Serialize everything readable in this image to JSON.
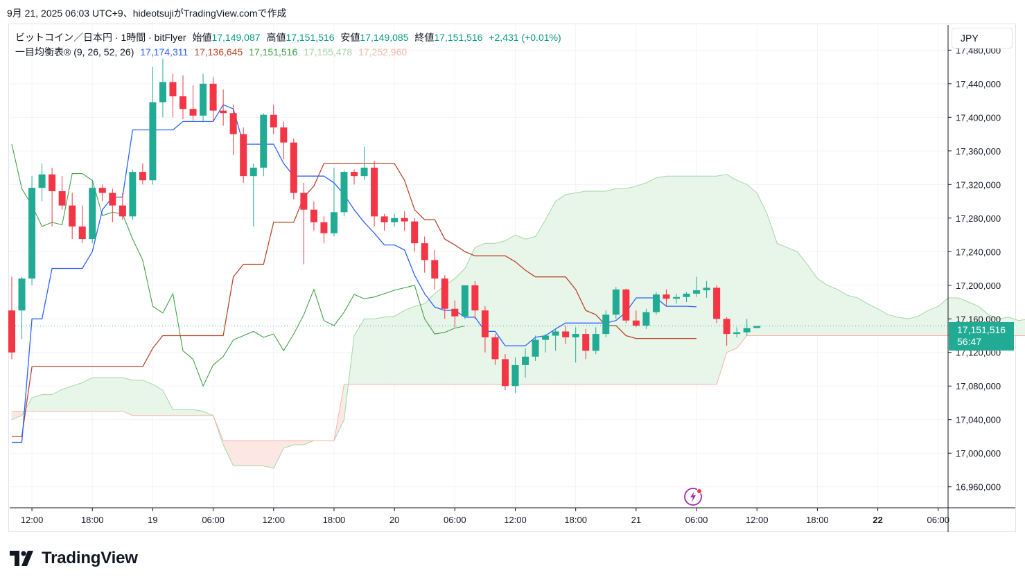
{
  "caption": "9月 21, 2025 06:03 UTC+9、hideotsujiがTradingView.comで作成",
  "legend": {
    "symbol": "ビットコイン／日本円 · 1時間 · bitFlyer",
    "open_label": "始値",
    "open": "17,149,087",
    "high_label": "高値",
    "high": "17,151,516",
    "low_label": "安値",
    "low": "17,149,085",
    "close_label": "終値",
    "close": "17,151,516",
    "change": "+2,431 (+0.01%)",
    "indicator": "一目均衡表® (9, 26, 52, 26)",
    "tenkan": "17,174,311",
    "kijun": "17,136,645",
    "chikou": "17,151,516",
    "span_a": "17,155,478",
    "span_b": "17,252,960"
  },
  "currency_button": "JPY",
  "price_tag": {
    "price": "17,151,516",
    "countdown": "56:47"
  },
  "brand": "TradingView",
  "colors": {
    "up": "#22ab94",
    "down": "#f23645",
    "tenkan": "#2962ff",
    "kijun": "#b7472a",
    "chikou": "#43a047",
    "span_a": "#a5d6a7",
    "span_b": "#f7b4a7",
    "cloud_bull": "#e8f5e9",
    "cloud_bear": "#fde7e4"
  },
  "icons": {
    "flash": "lightning-icon",
    "logo": "tradingview-logo-icon"
  },
  "chart_data": {
    "type": "candlestick",
    "x_start": "2025-09-18T11:00",
    "x_interval": "1h",
    "ylim": [
      16935000,
      17510000
    ],
    "y_ticks": [
      16960000,
      17000000,
      17040000,
      17080000,
      17120000,
      17160000,
      17200000,
      17240000,
      17280000,
      17320000,
      17360000,
      17400000,
      17440000,
      17480000
    ],
    "y_tick_labels": [
      "16,960,000",
      "17,000,000",
      "17,040,000",
      "17,080,000",
      "17,120,000",
      "17,160,000",
      "17,200,000",
      "17,240,000",
      "17,280,000",
      "17,320,000",
      "17,360,000",
      "17,400,000",
      "17,440,000",
      "17,480,000"
    ],
    "x_ticks": [
      {
        "i": 2,
        "label": "12:00"
      },
      {
        "i": 8,
        "label": "18:00"
      },
      {
        "i": 14,
        "label": "19"
      },
      {
        "i": 20,
        "label": "06:00"
      },
      {
        "i": 26,
        "label": "12:00"
      },
      {
        "i": 32,
        "label": "18:00"
      },
      {
        "i": 38,
        "label": "20"
      },
      {
        "i": 44,
        "label": "06:00"
      },
      {
        "i": 50,
        "label": "12:00"
      },
      {
        "i": 56,
        "label": "18:00"
      },
      {
        "i": 62,
        "label": "21"
      },
      {
        "i": 68,
        "label": "06:00"
      },
      {
        "i": 74,
        "label": "12:00"
      },
      {
        "i": 80,
        "label": "18:00"
      },
      {
        "i": 86,
        "label": "22",
        "bold": true
      },
      {
        "i": 92,
        "label": "06:00"
      }
    ],
    "ohlc": [
      [
        17170000,
        17210000,
        17112000,
        17120000
      ],
      [
        17170000,
        17210000,
        17136000,
        17208000
      ],
      [
        17208000,
        17330000,
        17200000,
        17316000
      ],
      [
        17316000,
        17345000,
        17300000,
        17332000
      ],
      [
        17332000,
        17340000,
        17270000,
        17312000
      ],
      [
        17312000,
        17330000,
        17290000,
        17295000
      ],
      [
        17295000,
        17310000,
        17255000,
        17270000
      ],
      [
        17270000,
        17295000,
        17250000,
        17255000
      ],
      [
        17255000,
        17325000,
        17250000,
        17316000
      ],
      [
        17316000,
        17320000,
        17300000,
        17310000
      ],
      [
        17310000,
        17315000,
        17275000,
        17295000
      ],
      [
        17295000,
        17310000,
        17278000,
        17282000
      ],
      [
        17282000,
        17338000,
        17278000,
        17335000
      ],
      [
        17335000,
        17345000,
        17320000,
        17325000
      ],
      [
        17325000,
        17460000,
        17320000,
        17418000
      ],
      [
        17418000,
        17470000,
        17400000,
        17442000
      ],
      [
        17442000,
        17452000,
        17400000,
        17425000
      ],
      [
        17425000,
        17450000,
        17398000,
        17410000
      ],
      [
        17410000,
        17438000,
        17396000,
        17402000
      ],
      [
        17402000,
        17452000,
        17394000,
        17440000
      ],
      [
        17440000,
        17448000,
        17395000,
        17408000
      ],
      [
        17408000,
        17433000,
        17390000,
        17405000
      ],
      [
        17405000,
        17415000,
        17355000,
        17380000
      ],
      [
        17380000,
        17388000,
        17322000,
        17330000
      ],
      [
        17330000,
        17345000,
        17270000,
        17340000
      ],
      [
        17340000,
        17405000,
        17330000,
        17403000
      ],
      [
        17403000,
        17415000,
        17380000,
        17388000
      ],
      [
        17388000,
        17395000,
        17350000,
        17370000
      ],
      [
        17370000,
        17375000,
        17302000,
        17310000
      ],
      [
        17310000,
        17322000,
        17225000,
        17290000
      ],
      [
        17290000,
        17300000,
        17265000,
        17275000
      ],
      [
        17275000,
        17282000,
        17250000,
        17262000
      ],
      [
        17262000,
        17340000,
        17258000,
        17287000
      ],
      [
        17287000,
        17337000,
        17282000,
        17335000
      ],
      [
        17335000,
        17338000,
        17320000,
        17330000
      ],
      [
        17330000,
        17365000,
        17325000,
        17340000
      ],
      [
        17340000,
        17348000,
        17270000,
        17282000
      ],
      [
        17282000,
        17285000,
        17265000,
        17275000
      ],
      [
        17275000,
        17285000,
        17270000,
        17280000
      ],
      [
        17280000,
        17288000,
        17265000,
        17276000
      ],
      [
        17276000,
        17280000,
        17240000,
        17250000
      ],
      [
        17250000,
        17258000,
        17215000,
        17230000
      ],
      [
        17230000,
        17242000,
        17195000,
        17208000
      ],
      [
        17208000,
        17212000,
        17160000,
        17172000
      ],
      [
        17172000,
        17182000,
        17150000,
        17163000
      ],
      [
        17163000,
        17195000,
        17160000,
        17200000
      ],
      [
        17200000,
        17205000,
        17160000,
        17170000
      ],
      [
        17170000,
        17175000,
        17120000,
        17138000
      ],
      [
        17138000,
        17142000,
        17105000,
        17112000
      ],
      [
        17112000,
        17118000,
        17075000,
        17080000
      ],
      [
        17080000,
        17114000,
        17072000,
        17105000
      ],
      [
        17105000,
        17125000,
        17090000,
        17115000
      ],
      [
        17115000,
        17140000,
        17110000,
        17135000
      ],
      [
        17135000,
        17142000,
        17120000,
        17140000
      ],
      [
        17140000,
        17148000,
        17122000,
        17145000
      ],
      [
        17145000,
        17152000,
        17130000,
        17138000
      ],
      [
        17138000,
        17150000,
        17108000,
        17142000
      ],
      [
        17142000,
        17148000,
        17112000,
        17122000
      ],
      [
        17122000,
        17150000,
        17118000,
        17142000
      ],
      [
        17142000,
        17170000,
        17138000,
        17165000
      ],
      [
        17165000,
        17198000,
        17160000,
        17195000
      ],
      [
        17195000,
        17196000,
        17155000,
        17158000
      ],
      [
        17158000,
        17170000,
        17150000,
        17152000
      ],
      [
        17152000,
        17172000,
        17148000,
        17168000
      ],
      [
        17168000,
        17192000,
        17165000,
        17189000
      ],
      [
        17189000,
        17195000,
        17175000,
        17184000
      ],
      [
        17184000,
        17190000,
        17178000,
        17186000
      ],
      [
        17186000,
        17192000,
        17180000,
        17190000
      ],
      [
        17190000,
        17210000,
        17186000,
        17194000
      ],
      [
        17194000,
        17205000,
        17185000,
        17197000
      ],
      [
        17197000,
        17200000,
        17155000,
        17160000
      ],
      [
        17160000,
        17162000,
        17128000,
        17142000
      ],
      [
        17142000,
        17150000,
        17138000,
        17144000
      ],
      [
        17144000,
        17160000,
        17140000,
        17149000
      ],
      [
        17149087,
        17151516,
        17149085,
        17151516
      ]
    ],
    "tenkan": [
      17013000,
      17013000,
      17160000,
      17160000,
      17220000,
      17220000,
      17220000,
      17220000,
      17240000,
      17290000,
      17305000,
      17305000,
      17385000,
      17385000,
      17385000,
      17385000,
      17385000,
      17395000,
      17395000,
      17395000,
      17395000,
      17415000,
      17410000,
      17368000,
      17368000,
      17368000,
      17368000,
      17345000,
      17330000,
      17330000,
      17330000,
      17330000,
      17322000,
      17308000,
      17290000,
      17275000,
      17262000,
      17248000,
      17248000,
      17242000,
      17212000,
      17190000,
      17174000,
      17170000,
      17170000,
      17162000,
      17162000,
      17145000,
      17145000,
      17128000,
      17128000,
      17128000,
      17138000,
      17140000,
      17148000,
      17155000,
      17155000,
      17155000,
      17155000,
      17155000,
      17158000,
      17168000,
      17185000,
      17185000,
      17185000,
      17175000,
      17175000,
      17175000,
      17174311
    ],
    "kijun": [
      17020000,
      17020000,
      17103000,
      17103000,
      17103000,
      17103000,
      17103000,
      17103000,
      17103000,
      17103000,
      17103000,
      17103000,
      17103000,
      17103000,
      17125000,
      17140000,
      17140000,
      17140000,
      17140000,
      17140000,
      17140000,
      17140000,
      17210000,
      17225000,
      17225000,
      17225000,
      17275000,
      17275000,
      17275000,
      17305000,
      17318000,
      17345000,
      17345000,
      17345000,
      17345000,
      17345000,
      17345000,
      17345000,
      17345000,
      17325000,
      17290000,
      17278000,
      17278000,
      17255000,
      17248000,
      17240000,
      17235000,
      17235000,
      17235000,
      17235000,
      17228000,
      17218000,
      17210000,
      17210000,
      17210000,
      17210000,
      17195000,
      17170000,
      17165000,
      17152000,
      17152000,
      17140000,
      17136645,
      17136645,
      17136645,
      17136645,
      17136645,
      17136645,
      17136645
    ],
    "chikou": [
      17368000,
      17315000,
      17295000,
      17270000,
      17275000,
      17272000,
      17333000,
      17333000,
      17325000,
      17283000,
      17287000,
      17285000,
      17255000,
      17230000,
      17175000,
      17167000,
      17190000,
      17122000,
      17112000,
      17080000,
      17105000,
      17115000,
      17135000,
      17140000,
      17145000,
      17138000,
      17142000,
      17122000,
      17142000,
      17165000,
      17195000,
      17158000,
      17152000,
      17168000,
      17189000,
      17184000,
      17186000,
      17190000,
      17194000,
      17197000,
      17200000,
      17160000,
      17142000,
      17144000,
      17149000,
      17151516
    ],
    "span_a": [
      17040000,
      17045000,
      17066000,
      17070000,
      17070000,
      17076000,
      17080000,
      17084000,
      17090000,
      17090000,
      17090000,
      17090000,
      17087000,
      17087000,
      17082000,
      17075000,
      17052000,
      17052000,
      17052000,
      17050000,
      17045000,
      17010000,
      16985000,
      16985000,
      16985000,
      16985000,
      16982000,
      17006000,
      17010000,
      17010000,
      17015000,
      17015000,
      17015000,
      17040000,
      17140000,
      17160000,
      17160000,
      17162000,
      17163000,
      17170000,
      17175000,
      17178000,
      17190000,
      17200000,
      17208000,
      17220000,
      17245000,
      17250000,
      17250000,
      17253000,
      17260000,
      17255000,
      17258000,
      17278000,
      17300000,
      17308000,
      17310000,
      17312000,
      17312000,
      17312000,
      17315000,
      17315000,
      17318000,
      17322000,
      17328000,
      17330000,
      17330000,
      17330000,
      17330000,
      17330000,
      17330000,
      17332000,
      17325000,
      17320000,
      17310000,
      17285000,
      17250000,
      17245000,
      17240000,
      17225000,
      17208000,
      17200000,
      17195000,
      17188000,
      17185000,
      17178000,
      17172000,
      17165000,
      17162000,
      17160000,
      17163000,
      17170000,
      17175000,
      17185000,
      17185000,
      17180000,
      17175000,
      17165000,
      17160000,
      17162000,
      17158000,
      17160000,
      17158000,
      17155000,
      17153000,
      17155478
    ],
    "span_b": [
      17050000,
      17050000,
      17050000,
      17050000,
      17050000,
      17050000,
      17050000,
      17050000,
      17050000,
      17050000,
      17050000,
      17050000,
      17045000,
      17045000,
      17045000,
      17045000,
      17045000,
      17045000,
      17045000,
      17045000,
      17045000,
      17015000,
      17015000,
      17015000,
      17015000,
      17015000,
      17015000,
      17015000,
      17015000,
      17015000,
      17015000,
      17015000,
      17015000,
      17082000,
      17082000,
      17082000,
      17082000,
      17082000,
      17082000,
      17082000,
      17082000,
      17082000,
      17082000,
      17082000,
      17082000,
      17082000,
      17082000,
      17082000,
      17082000,
      17082000,
      17082000,
      17082000,
      17082000,
      17082000,
      17082000,
      17082000,
      17082000,
      17082000,
      17082000,
      17082000,
      17082000,
      17082000,
      17082000,
      17082000,
      17082000,
      17082000,
      17082000,
      17082000,
      17082000,
      17082000,
      17082000,
      17120000,
      17125000,
      17140000,
      17140000,
      17140000,
      17140000,
      17140000,
      17140000,
      17140000,
      17140000,
      17140000,
      17140000,
      17140000,
      17140000,
      17140000,
      17140000,
      17140000,
      17140000,
      17140000,
      17140000,
      17140000,
      17140000,
      17140000,
      17140000,
      17140000,
      17140000,
      17140000,
      17140000,
      17140000,
      17140000,
      17140000,
      17140000,
      17140000,
      17140000,
      17140000,
      17140000,
      17140000,
      17140000,
      17140000,
      17140000,
      17140000,
      17140000,
      17140000,
      17140000,
      17140000,
      17140000,
      17140000,
      17140000,
      17140000,
      17140000,
      17140000,
      17140000,
      17140000,
      17140000,
      17140000,
      17140000,
      17140000,
      17140000,
      17140000,
      17140000,
      17140000,
      17210000,
      17225000,
      17225000,
      17262000,
      17262000,
      17262000,
      17262000,
      17262000,
      17262000,
      17262000,
      17262000,
      17262000,
      17262000,
      17262000,
      17262000,
      17262000,
      17262000,
      17262000,
      17262000,
      17262000,
      17262000,
      17262000,
      17252960,
      17252960,
      17252960,
      17252960,
      17252960,
      17252960,
      17252960,
      17252960
    ]
  }
}
